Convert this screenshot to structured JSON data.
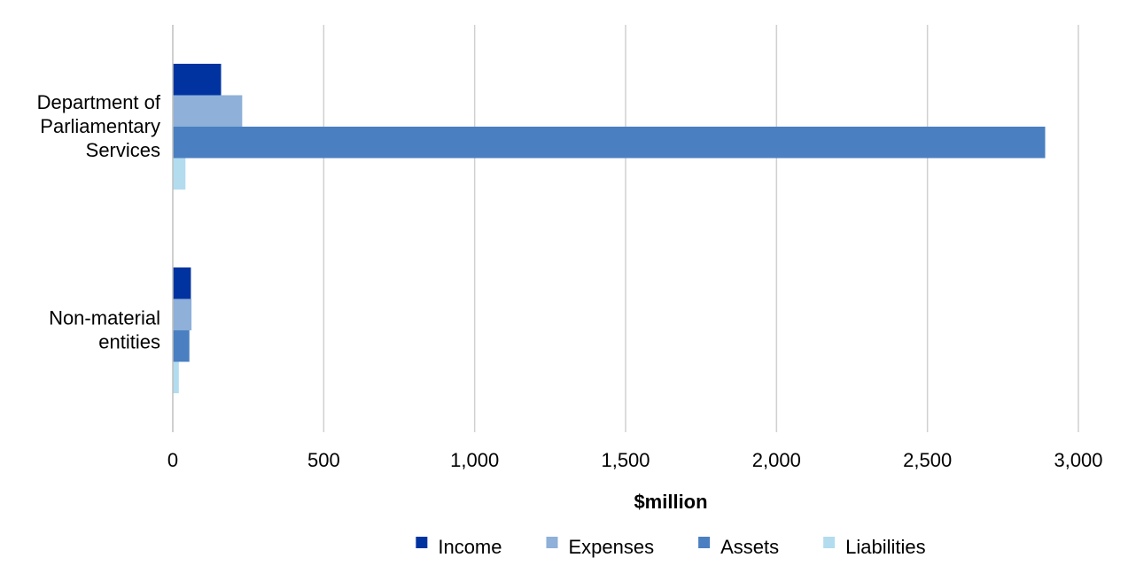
{
  "chart_data": {
    "type": "bar",
    "orientation": "horizontal",
    "categories": [
      [
        "Department of",
        "Parliamentary",
        "Services"
      ],
      [
        "Non-material",
        "entities"
      ]
    ],
    "series": [
      {
        "name": "Income",
        "color": "#0033a0",
        "values": [
          160,
          60
        ]
      },
      {
        "name": "Expenses",
        "color": "#8eb0d9",
        "values": [
          230,
          62
        ]
      },
      {
        "name": "Assets",
        "color": "#4a7fc1",
        "values": [
          2890,
          55
        ]
      },
      {
        "name": "Liabilities",
        "color": "#b3dcef",
        "values": [
          42,
          20
        ]
      }
    ],
    "xlabel": "$million",
    "xlim": [
      0,
      3000
    ],
    "xticks": [
      0,
      500,
      1000,
      1500,
      2000,
      2500,
      3000
    ],
    "xtick_labels": [
      "0",
      "500",
      "1,000",
      "1,500",
      "2,000",
      "2,500",
      "3,000"
    ],
    "grid": "vertical",
    "legend_position": "bottom"
  }
}
